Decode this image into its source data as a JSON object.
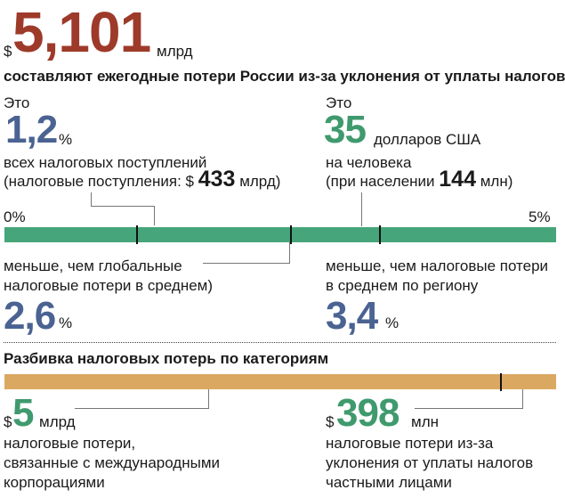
{
  "headline": {
    "currency": "$",
    "value": "5,101",
    "unit": "млрд",
    "caption": "составляют ежегодные потери России из-за уклонения от уплаты налогов"
  },
  "left_stat": {
    "intro": "Это",
    "value": "1,2",
    "unit": "%",
    "line1": "всех налоговых поступлений",
    "line2_prefix": "(налоговые поступления: $",
    "line2_value": "433",
    "line2_suffix": "млрд)"
  },
  "right_stat": {
    "intro": "Это",
    "value": "35",
    "unit": "долларов США",
    "line1": "на человека",
    "line2_prefix": "(при населении",
    "line2_value": "144",
    "line2_suffix": "млн)"
  },
  "scale": {
    "min_label": "0%",
    "max_label": "5%",
    "min": 0,
    "max": 5,
    "markers": [
      1.2,
      2.6,
      3.4
    ]
  },
  "global_comparison": {
    "line1": "меньше, чем глобальные",
    "line2": "налоговые потери в среднем)",
    "value": "2,6",
    "unit": "%"
  },
  "regional_comparison": {
    "line1": "меньше, чем налоговые потери",
    "line2": "в среднем по региону",
    "value": "3,4",
    "unit": "%"
  },
  "breakdown": {
    "title": "Разбивка налоговых потерь по категориям",
    "split_fraction": 0.9,
    "corporate": {
      "currency": "$",
      "value": "5",
      "unit": "млрд",
      "line1": "налоговые потери,",
      "line2": "связанные с международными",
      "line3": "корпорациями"
    },
    "individual": {
      "currency": "$",
      "value": "398",
      "unit": "млн",
      "line1": "налоговые потери из-за",
      "line2": "уклонения от уплаты налогов",
      "line3": "частными лицами"
    }
  },
  "colors": {
    "headline": "#9e3a2a",
    "percent": "#4a6392",
    "money": "#3f9a6e",
    "scale_bar": "#46a57a",
    "breakdown_bar": "#dba862"
  }
}
